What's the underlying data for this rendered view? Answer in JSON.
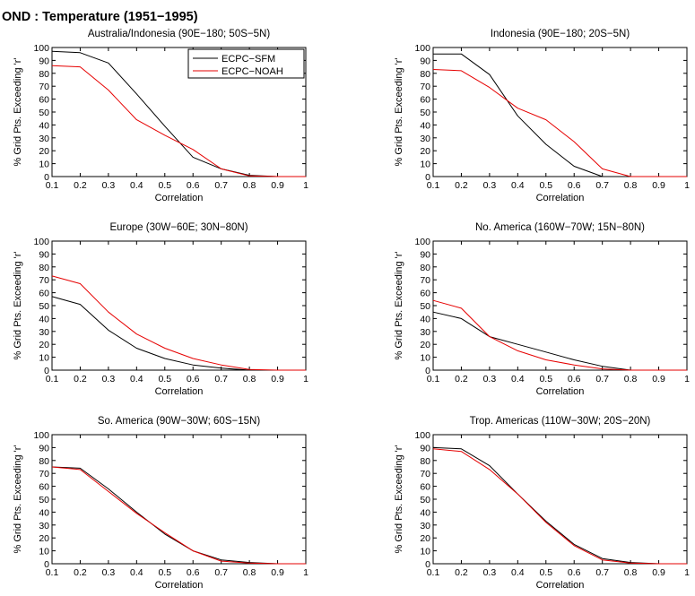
{
  "figure_title": "OND : Temperature (1951−1995)",
  "legend": {
    "labels": [
      "ECPC−SFM",
      "ECPC−NOAH"
    ]
  },
  "colors": {
    "ECPC-SFM": "#000000",
    "ECPC-NOAH": "#e60000",
    "axes": "#000000"
  },
  "chart_data": [
    {
      "type": "line",
      "title": "Australia/Indonesia (90E−180; 50S−5N)",
      "xlabel": "Correlation",
      "ylabel": "% Grid Pts. Exceeding 'r'",
      "x": [
        0.1,
        0.2,
        0.3,
        0.4,
        0.5,
        0.6,
        0.7,
        0.8,
        0.9,
        1.0
      ],
      "xlim": [
        0.1,
        1
      ],
      "ylim": [
        0,
        100
      ],
      "xticks": [
        "0.1",
        "0.2",
        "0.3",
        "0.4",
        "0.5",
        "0.6",
        "0.7",
        "0.8",
        "0.9",
        "1"
      ],
      "yticks": [
        "0",
        "10",
        "20",
        "30",
        "40",
        "50",
        "60",
        "70",
        "80",
        "90",
        "100"
      ],
      "grid": false,
      "legend": "top-right",
      "series": [
        {
          "name": "ECPC−SFM",
          "color": "#000000",
          "values": [
            97,
            96,
            88,
            64,
            39,
            15,
            6,
            1,
            0,
            0
          ]
        },
        {
          "name": "ECPC−NOAH",
          "color": "#e60000",
          "values": [
            86,
            85,
            67,
            44,
            32,
            21,
            6,
            0.5,
            0,
            0
          ]
        }
      ]
    },
    {
      "type": "line",
      "title": "Indonesia (90E−180; 20S−5N)",
      "xlabel": "Correlation",
      "ylabel": "% Grid Pts. Exceeding 'r'",
      "x": [
        0.1,
        0.2,
        0.3,
        0.4,
        0.5,
        0.6,
        0.7,
        0.8,
        0.9,
        1.0
      ],
      "xlim": [
        0.1,
        1
      ],
      "ylim": [
        0,
        100
      ],
      "xticks": [
        "0.1",
        "0.2",
        "0.3",
        "0.4",
        "0.5",
        "0.6",
        "0.7",
        "0.8",
        "0.9",
        "1"
      ],
      "yticks": [
        "0",
        "10",
        "20",
        "30",
        "40",
        "50",
        "60",
        "70",
        "80",
        "90",
        "100"
      ],
      "grid": false,
      "legend": "none",
      "series": [
        {
          "name": "ECPC−SFM",
          "color": "#000000",
          "values": [
            95,
            95,
            79,
            47,
            25,
            8,
            0,
            0,
            0,
            0
          ]
        },
        {
          "name": "ECPC−NOAH",
          "color": "#e60000",
          "values": [
            83,
            82,
            69,
            53,
            44,
            27,
            6,
            0,
            0,
            0
          ]
        }
      ]
    },
    {
      "type": "line",
      "title": "Europe (30W−60E; 30N−80N)",
      "xlabel": "Correlation",
      "ylabel": "% Grid Pts. Exceeding 'r'",
      "x": [
        0.1,
        0.2,
        0.3,
        0.4,
        0.5,
        0.6,
        0.7,
        0.8,
        0.9,
        1.0
      ],
      "xlim": [
        0.1,
        1
      ],
      "ylim": [
        0,
        100
      ],
      "xticks": [
        "0.1",
        "0.2",
        "0.3",
        "0.4",
        "0.5",
        "0.6",
        "0.7",
        "0.8",
        "0.9",
        "1"
      ],
      "yticks": [
        "0",
        "10",
        "20",
        "30",
        "40",
        "50",
        "60",
        "70",
        "80",
        "90",
        "100"
      ],
      "grid": false,
      "legend": "none",
      "series": [
        {
          "name": "ECPC−SFM",
          "color": "#000000",
          "values": [
            57,
            51,
            31,
            17,
            9,
            4,
            1.5,
            0,
            0,
            0
          ]
        },
        {
          "name": "ECPC−NOAH",
          "color": "#e60000",
          "values": [
            73,
            67,
            45,
            28,
            17,
            9,
            4,
            0.5,
            0,
            0
          ]
        }
      ]
    },
    {
      "type": "line",
      "title": "No. America (160W−70W; 15N−80N)",
      "xlabel": "Correlation",
      "ylabel": "% Grid Pts. Exceeding 'r'",
      "x": [
        0.1,
        0.2,
        0.3,
        0.4,
        0.5,
        0.6,
        0.7,
        0.8,
        0.9,
        1.0
      ],
      "xlim": [
        0.1,
        1
      ],
      "ylim": [
        0,
        100
      ],
      "xticks": [
        "0.1",
        "0.2",
        "0.3",
        "0.4",
        "0.5",
        "0.6",
        "0.7",
        "0.8",
        "0.9",
        "1"
      ],
      "yticks": [
        "0",
        "10",
        "20",
        "30",
        "40",
        "50",
        "60",
        "70",
        "80",
        "90",
        "100"
      ],
      "grid": false,
      "legend": "none",
      "series": [
        {
          "name": "ECPC−SFM",
          "color": "#000000",
          "values": [
            45,
            40,
            26,
            20,
            14,
            8,
            3,
            0,
            0,
            0
          ]
        },
        {
          "name": "ECPC−NOAH",
          "color": "#e60000",
          "values": [
            54,
            48,
            26,
            15,
            8,
            4,
            1,
            0,
            0,
            0
          ]
        }
      ]
    },
    {
      "type": "line",
      "title": "So. America (90W−30W; 60S−15N)",
      "xlabel": "Correlation",
      "ylabel": "% Grid Pts. Exceeding 'r'",
      "x": [
        0.1,
        0.2,
        0.3,
        0.4,
        0.5,
        0.6,
        0.7,
        0.8,
        0.9,
        1.0
      ],
      "xlim": [
        0.1,
        1
      ],
      "ylim": [
        0,
        100
      ],
      "xticks": [
        "0.1",
        "0.2",
        "0.3",
        "0.4",
        "0.5",
        "0.6",
        "0.7",
        "0.8",
        "0.9",
        "1"
      ],
      "yticks": [
        "0",
        "10",
        "20",
        "30",
        "40",
        "50",
        "60",
        "70",
        "80",
        "90",
        "100"
      ],
      "grid": false,
      "legend": "none",
      "series": [
        {
          "name": "ECPC−SFM",
          "color": "#000000",
          "values": [
            75,
            74,
            58,
            40,
            23,
            10,
            3,
            1,
            0,
            0
          ]
        },
        {
          "name": "ECPC−NOAH",
          "color": "#e60000",
          "values": [
            75,
            73,
            56,
            39,
            24,
            10,
            2,
            0.5,
            0,
            0
          ]
        }
      ]
    },
    {
      "type": "line",
      "title": "Trop. Americas (110W−30W; 20S−20N)",
      "xlabel": "Correlation",
      "ylabel": "% Grid Pts. Exceeding 'r'",
      "x": [
        0.1,
        0.2,
        0.3,
        0.4,
        0.5,
        0.6,
        0.7,
        0.8,
        0.9,
        1.0
      ],
      "xlim": [
        0.1,
        1
      ],
      "ylim": [
        0,
        100
      ],
      "xticks": [
        "0.1",
        "0.2",
        "0.3",
        "0.4",
        "0.5",
        "0.6",
        "0.7",
        "0.8",
        "0.9",
        "1"
      ],
      "yticks": [
        "0",
        "10",
        "20",
        "30",
        "40",
        "50",
        "60",
        "70",
        "80",
        "90",
        "100"
      ],
      "grid": false,
      "legend": "none",
      "series": [
        {
          "name": "ECPC−SFM",
          "color": "#000000",
          "values": [
            90,
            89,
            76,
            54,
            33,
            15,
            4,
            1,
            0,
            0
          ]
        },
        {
          "name": "ECPC−NOAH",
          "color": "#e60000",
          "values": [
            89,
            87,
            73,
            54,
            32,
            14,
            3,
            0.5,
            0,
            0
          ]
        }
      ]
    }
  ]
}
